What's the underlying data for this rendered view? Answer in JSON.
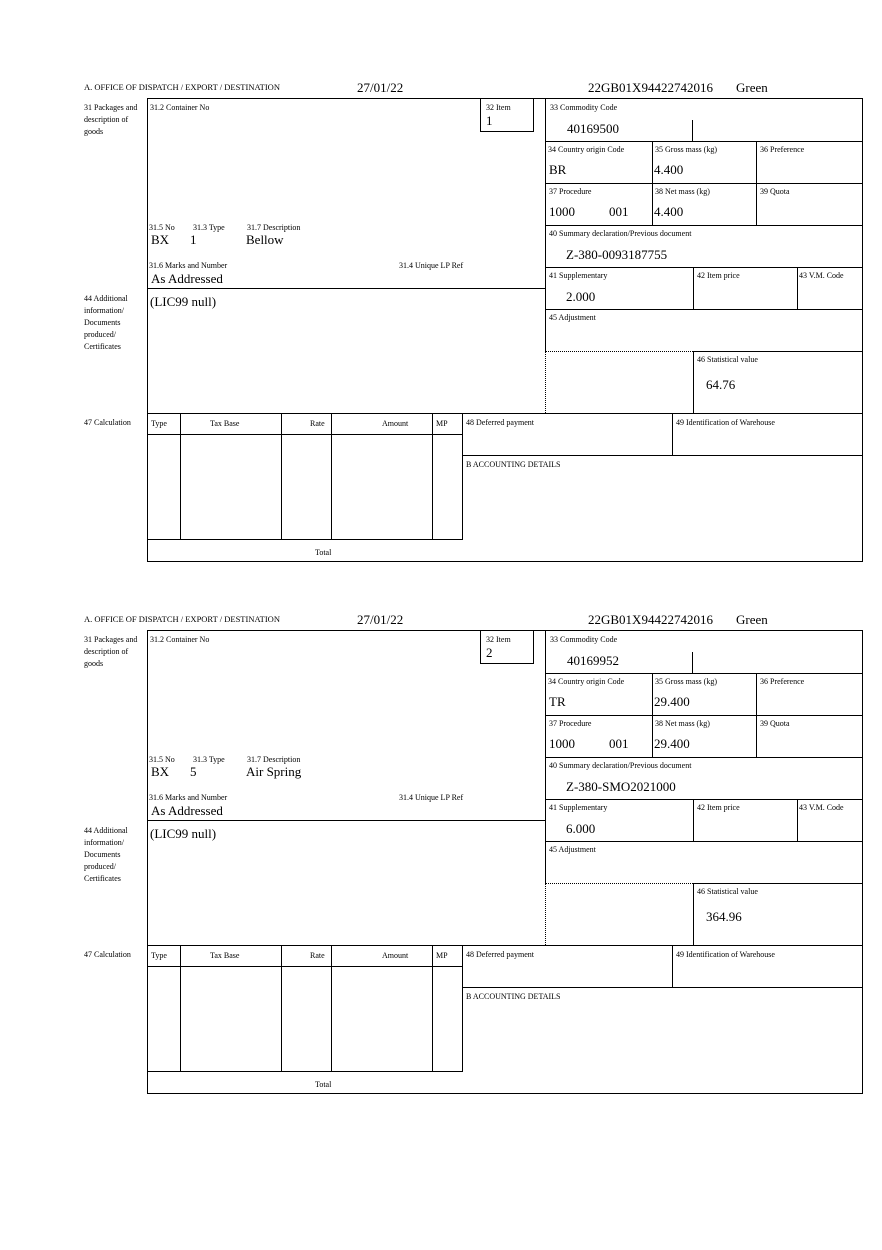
{
  "labels": {
    "office": "A. OFFICE OF DISPATCH / EXPORT / DESTINATION",
    "packages": "31 Packages and description of goods",
    "container": "31.2 Container No",
    "item": "32 Item",
    "no": "31.5 No",
    "type": "31.3 Type",
    "description": "31.7 Description",
    "marks": "31.6 Marks and Number",
    "unique": "31.4 Unique LP Ref",
    "additional": "44 Additional information/ Documents produced/ Certificates",
    "commodity": "33 Commodity Code",
    "country": "34 Country origin Code",
    "gross": "35 Gross mass (kg)",
    "preference": "36 Preference",
    "procedure": "37 Procedure",
    "net": "38 Net mass (kg)",
    "quota": "39 Quota",
    "summary": "40 Summary declaration/Previous document",
    "supplementary": "41 Supplementary",
    "item_price": "42 Item price",
    "vm": "43 V.M. Code",
    "adjustment": "45 Adjustment",
    "statistical": "46 Statistical value",
    "calculation": "47 Calculation",
    "calc_cols": [
      "Type",
      "Tax Base",
      "Rate",
      "Amount",
      "MP"
    ],
    "total": "Total",
    "deferred": "48 Deferred payment",
    "warehouse": "49 Identification of Warehouse",
    "accounting": "B ACCOUNTING DETAILS"
  },
  "items": [
    {
      "date": "27/01/22",
      "ref": "22GB01X94422742016",
      "route": "Green",
      "item": "1",
      "pkg_no": "BX",
      "pkg_type": "1",
      "description": "Bellow",
      "marks": "As Addressed",
      "additional": "(LIC99 null)",
      "commodity": "40169500",
      "country": "BR",
      "gross": "4.400",
      "procedure": "1000",
      "procedure2": "001",
      "net": "4.400",
      "summary": "Z-380-0093187755",
      "supplementary": "2.000",
      "statistical": "64.76"
    },
    {
      "date": "27/01/22",
      "ref": "22GB01X94422742016",
      "route": "Green",
      "item": "2",
      "pkg_no": "BX",
      "pkg_type": "5",
      "description": "Air Spring",
      "marks": "As Addressed",
      "additional": "(LIC99 null)",
      "commodity": "40169952",
      "country": "TR",
      "gross": "29.400",
      "procedure": "1000",
      "procedure2": "001",
      "net": "29.400",
      "summary": "Z-380-SMO2021000",
      "supplementary": "6.000",
      "statistical": "364.96"
    }
  ]
}
